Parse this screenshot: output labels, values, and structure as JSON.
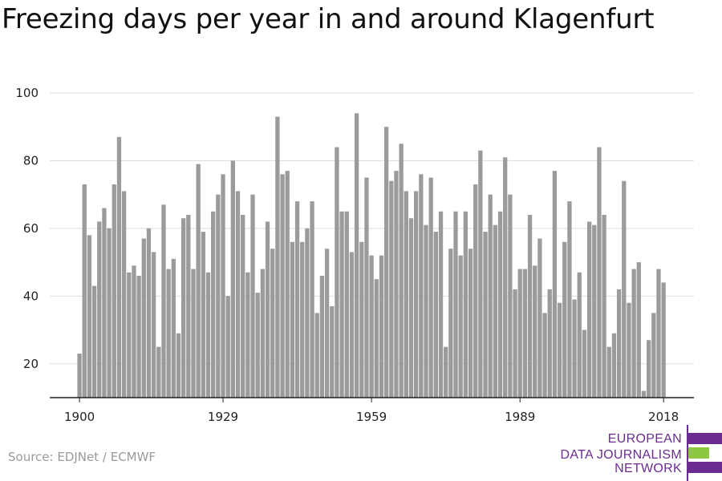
{
  "title": "Freezing days per year in and around Klagenfurt",
  "source": "Source: EDJNet / ECMWF",
  "logo": {
    "lines": [
      "EUROPEAN",
      "DATA JOURNALISM",
      "NETWORK"
    ],
    "colors": {
      "text": "#6b2c91",
      "bar_purple": "#6b2c91",
      "bar_green": "#8dc63f"
    }
  },
  "colors": {
    "bar": "#9b9b9b",
    "grid": "#dddddd",
    "axis": "#222222"
  },
  "chart_data": {
    "type": "bar",
    "title": "Freezing days per year in and around Klagenfurt",
    "xlabel": "",
    "ylabel": "",
    "ylim": [
      10,
      100
    ],
    "yticks": [
      20,
      40,
      60,
      80,
      100
    ],
    "xticks": [
      1900,
      1929,
      1959,
      1989,
      2018
    ],
    "grid": true,
    "x": [
      1900,
      1901,
      1902,
      1903,
      1904,
      1905,
      1906,
      1907,
      1908,
      1909,
      1910,
      1911,
      1912,
      1913,
      1914,
      1915,
      1916,
      1917,
      1918,
      1919,
      1920,
      1921,
      1922,
      1923,
      1924,
      1925,
      1926,
      1927,
      1928,
      1929,
      1930,
      1931,
      1932,
      1933,
      1934,
      1935,
      1936,
      1937,
      1938,
      1939,
      1940,
      1941,
      1942,
      1943,
      1944,
      1945,
      1946,
      1947,
      1948,
      1949,
      1950,
      1951,
      1952,
      1953,
      1954,
      1955,
      1956,
      1957,
      1958,
      1959,
      1960,
      1961,
      1962,
      1963,
      1964,
      1965,
      1966,
      1967,
      1968,
      1969,
      1970,
      1971,
      1972,
      1973,
      1974,
      1975,
      1976,
      1977,
      1978,
      1979,
      1980,
      1981,
      1982,
      1983,
      1984,
      1985,
      1986,
      1987,
      1988,
      1989,
      1990,
      1991,
      1992,
      1993,
      1994,
      1995,
      1996,
      1997,
      1998,
      1999,
      2000,
      2001,
      2002,
      2003,
      2004,
      2005,
      2006,
      2007,
      2008,
      2009,
      2010,
      2011,
      2012,
      2013,
      2014,
      2015,
      2016,
      2017,
      2018
    ],
    "values": [
      23,
      73,
      58,
      43,
      62,
      66,
      60,
      73,
      87,
      71,
      47,
      49,
      46,
      57,
      60,
      53,
      25,
      67,
      48,
      51,
      29,
      63,
      64,
      48,
      79,
      59,
      47,
      65,
      70,
      76,
      40,
      80,
      71,
      64,
      47,
      70,
      41,
      48,
      62,
      54,
      93,
      76,
      77,
      56,
      68,
      56,
      60,
      68,
      35,
      46,
      54,
      37,
      84,
      65,
      65,
      53,
      94,
      56,
      75,
      52,
      45,
      52,
      90,
      74,
      77,
      85,
      71,
      63,
      71,
      76,
      61,
      75,
      59,
      65,
      25,
      54,
      65,
      52,
      65,
      54,
      73,
      83,
      59,
      70,
      61,
      65,
      81,
      70,
      42,
      48,
      48,
      64,
      49,
      57,
      35,
      42,
      77,
      38,
      56,
      68,
      39,
      47,
      30,
      62,
      61,
      84,
      64,
      25,
      29,
      42,
      74,
      38,
      48,
      50,
      12,
      27,
      35,
      48,
      44
    ]
  }
}
